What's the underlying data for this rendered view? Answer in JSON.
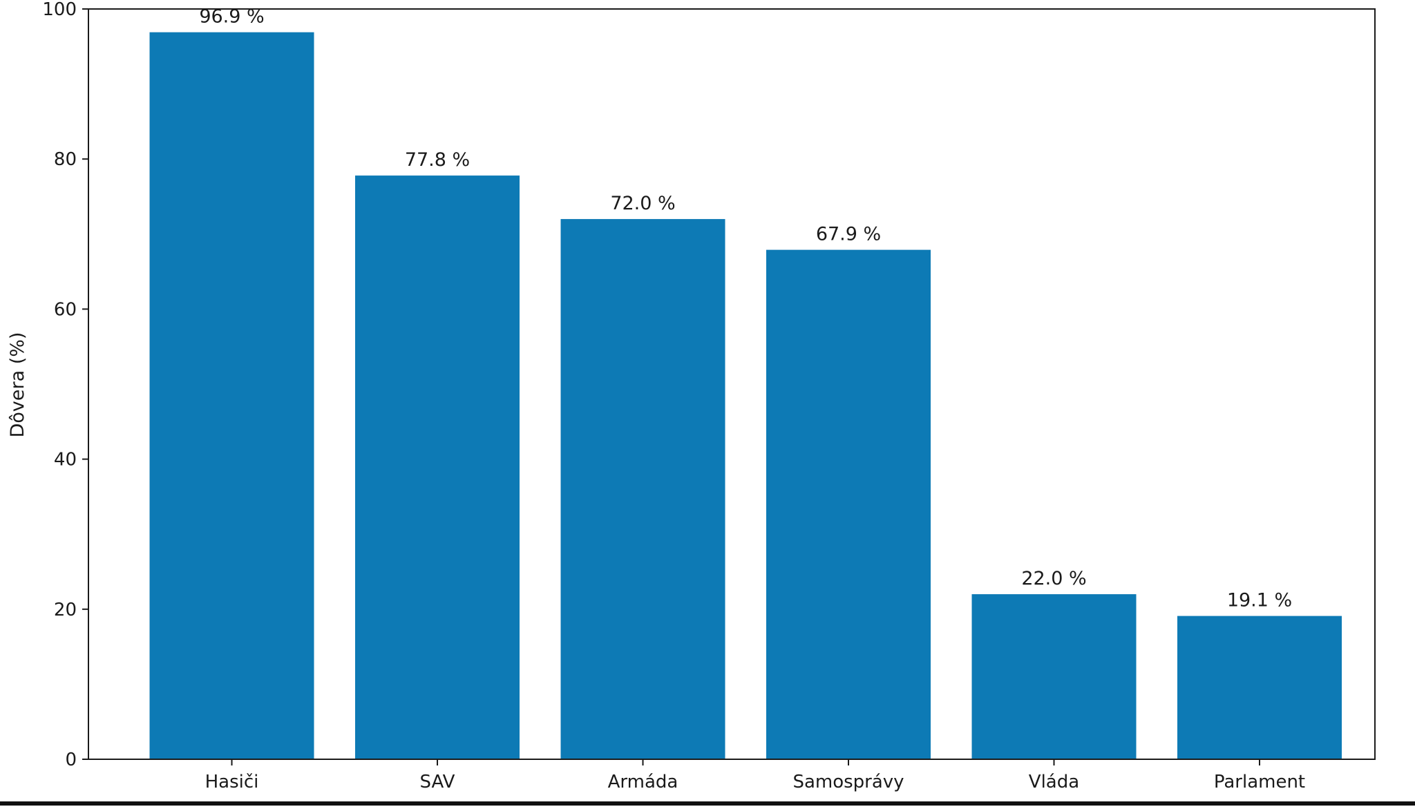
{
  "colors": {
    "bar": "#0d7ab5",
    "axis": "#1a1a1a",
    "background": "#ffffff"
  },
  "chart_data": {
    "type": "bar",
    "title": "",
    "xlabel": "",
    "ylabel": "Dôvera (%)",
    "ylim": [
      0,
      100
    ],
    "yticks": [
      "0",
      "20",
      "40",
      "60",
      "80",
      "100"
    ],
    "grid": false,
    "categories": [
      "Hasiči",
      "SAV",
      "Armáda",
      "Samosprávy",
      "Vláda",
      "Parlament"
    ],
    "values": [
      96.9,
      77.8,
      72.0,
      67.9,
      22.0,
      19.1
    ],
    "data_labels": [
      "96.9 %",
      "77.8 %",
      "72.0 %",
      "67.9 %",
      "22.0 %",
      "19.1 %"
    ]
  }
}
